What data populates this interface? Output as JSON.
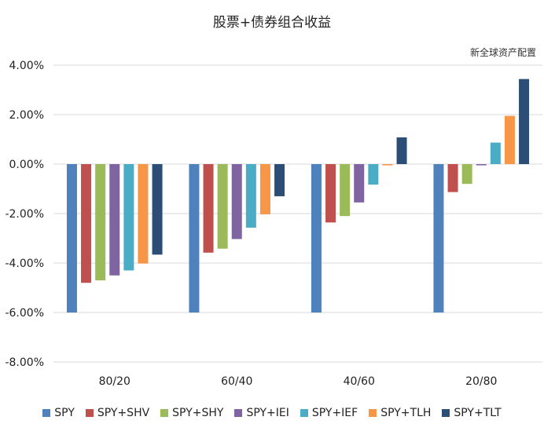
{
  "chart_data": {
    "type": "bar",
    "title": "股票+债券组合收益",
    "watermark": "新全球资产配置",
    "categories": [
      "80/20",
      "60/40",
      "40/60",
      "20/80"
    ],
    "series": [
      {
        "name": "SPY",
        "color": "#4f81bd",
        "values": [
          -6.0,
          -6.0,
          -6.0,
          -6.0
        ]
      },
      {
        "name": "SPY+SHV",
        "color": "#c0504d",
        "values": [
          -4.8,
          -3.58,
          -2.36,
          -1.13
        ]
      },
      {
        "name": "SPY+SHY",
        "color": "#9bbb59",
        "values": [
          -4.7,
          -3.42,
          -2.1,
          -0.8
        ]
      },
      {
        "name": "SPY+IEI",
        "color": "#8064a2",
        "values": [
          -4.5,
          -3.03,
          -1.55,
          -0.05
        ]
      },
      {
        "name": "SPY+IEF",
        "color": "#4bacc6",
        "values": [
          -4.3,
          -2.57,
          -0.83,
          0.87
        ]
      },
      {
        "name": "SPY+TLH",
        "color": "#f79646",
        "values": [
          -4.02,
          -2.03,
          -0.05,
          1.95
        ]
      },
      {
        "name": "SPY+TLT",
        "color": "#2c4d75",
        "values": [
          -3.66,
          -1.3,
          1.08,
          3.44
        ]
      }
    ],
    "ylim": [
      -8,
      4
    ],
    "yticks": [
      "4.00%",
      "2.00%",
      "0.00%",
      "-2.00%",
      "-4.00%",
      "-6.00%",
      "-8.00%"
    ],
    "grid": true,
    "legend_position": "bottom"
  }
}
